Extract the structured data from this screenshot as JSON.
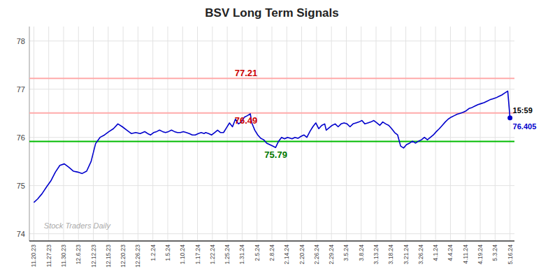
{
  "chart_data": {
    "type": "line",
    "title": "BSV Long Term Signals",
    "color": "#0000cc",
    "grid": true,
    "xlim": [
      -0.3,
      32.3
    ],
    "xticks": [
      {
        "value": 0,
        "label": "11.20.23"
      },
      {
        "value": 1,
        "label": "11.27.23"
      },
      {
        "value": 2,
        "label": "11.30.23"
      },
      {
        "value": 3,
        "label": "12.6.23"
      },
      {
        "value": 4,
        "label": "12.12.23"
      },
      {
        "value": 5,
        "label": "12.15.23"
      },
      {
        "value": 6,
        "label": "12.20.23"
      },
      {
        "value": 7,
        "label": "12.26.23"
      },
      {
        "value": 8,
        "label": "1.2.24"
      },
      {
        "value": 9,
        "label": "1.5.24"
      },
      {
        "value": 10,
        "label": "1.10.24"
      },
      {
        "value": 11,
        "label": "1.17.24"
      },
      {
        "value": 12,
        "label": "1.22.24"
      },
      {
        "value": 13,
        "label": "1.25.24"
      },
      {
        "value": 14,
        "label": "1.31.24"
      },
      {
        "value": 15,
        "label": "2.5.24"
      },
      {
        "value": 16,
        "label": "2.8.24"
      },
      {
        "value": 17,
        "label": "2.14.24"
      },
      {
        "value": 18,
        "label": "2.20.24"
      },
      {
        "value": 19,
        "label": "2.26.24"
      },
      {
        "value": 20,
        "label": "2.29.24"
      },
      {
        "value": 21,
        "label": "3.5.24"
      },
      {
        "value": 22,
        "label": "3.8.24"
      },
      {
        "value": 23,
        "label": "3.13.24"
      },
      {
        "value": 24,
        "label": "3.18.24"
      },
      {
        "value": 25,
        "label": "3.21.24"
      },
      {
        "value": 26,
        "label": "3.26.24"
      },
      {
        "value": 27,
        "label": "4.1.24"
      },
      {
        "value": 28,
        "label": "4.4.24"
      },
      {
        "value": 29,
        "label": "4.11.24"
      },
      {
        "value": 30,
        "label": "4.19.24"
      },
      {
        "value": 31,
        "label": "5.3.24"
      },
      {
        "value": 32,
        "label": "5.16.24"
      }
    ],
    "ylim": [
      73.85,
      78.3
    ],
    "yticks": [
      74,
      75,
      76,
      77,
      78
    ],
    "x": [
      0,
      0.25,
      0.55,
      0.85,
      1.15,
      1.45,
      1.75,
      2.05,
      2.35,
      2.65,
      2.95,
      3.25,
      3.55,
      3.85,
      4.15,
      4.45,
      4.75,
      5.05,
      5.35,
      5.65,
      5.95,
      6.25,
      6.55,
      6.85,
      7.15,
      7.45,
      7.55,
      7.65,
      7.85,
      8.05,
      8.25,
      8.45,
      8.65,
      8.85,
      9.05,
      9.25,
      9.45,
      9.65,
      9.85,
      10.05,
      10.25,
      10.45,
      10.65,
      10.85,
      11.05,
      11.25,
      11.45,
      11.55,
      11.75,
      11.95,
      12.15,
      12.35,
      12.55,
      12.75,
      12.95,
      13.15,
      13.35,
      13.55,
      13.75,
      13.95,
      14.15,
      14.35,
      14.55,
      14.65,
      14.85,
      15.05,
      15.25,
      15.45,
      15.65,
      15.85,
      16.05,
      16.25,
      16.45,
      16.65,
      16.85,
      17.05,
      17.25,
      17.35,
      17.55,
      17.75,
      17.95,
      18.15,
      18.35,
      18.55,
      18.75,
      18.95,
      19.15,
      19.35,
      19.55,
      19.65,
      19.85,
      20.05,
      20.25,
      20.45,
      20.65,
      20.85,
      21.05,
      21.25,
      21.45,
      21.65,
      21.85,
      22.05,
      22.25,
      22.45,
      22.65,
      22.85,
      23.05,
      23.25,
      23.45,
      23.65,
      23.85,
      24.05,
      24.25,
      24.45,
      24.65,
      24.85,
      25.05,
      25.25,
      25.45,
      25.65,
      25.85,
      26.05,
      26.25,
      26.45,
      26.65,
      26.85,
      27.05,
      27.25,
      27.45,
      27.65,
      27.85,
      28.05,
      28.25,
      28.45,
      28.65,
      28.85,
      29.05,
      29.25,
      29.45,
      29.65,
      29.85,
      30.05,
      30.25,
      30.45,
      30.65,
      30.85,
      31.05,
      31.25,
      31.45,
      31.65,
      31.85,
      32.0
    ],
    "values": [
      74.65,
      74.72,
      74.83,
      74.97,
      75.1,
      75.28,
      75.42,
      75.45,
      75.38,
      75.3,
      75.28,
      75.25,
      75.3,
      75.5,
      75.87,
      76.0,
      76.05,
      76.12,
      76.18,
      76.28,
      76.22,
      76.15,
      76.08,
      76.1,
      76.08,
      76.12,
      76.1,
      76.08,
      76.05,
      76.1,
      76.12,
      76.15,
      76.12,
      76.1,
      76.12,
      76.15,
      76.12,
      76.1,
      76.1,
      76.12,
      76.1,
      76.08,
      76.05,
      76.05,
      76.08,
      76.1,
      76.08,
      76.1,
      76.08,
      76.05,
      76.1,
      76.15,
      76.1,
      76.1,
      76.2,
      76.3,
      76.22,
      76.38,
      76.28,
      76.32,
      76.42,
      76.45,
      76.49,
      76.3,
      76.15,
      76.05,
      75.98,
      75.95,
      75.88,
      75.85,
      75.82,
      75.79,
      75.92,
      76.0,
      75.97,
      76.0,
      75.98,
      75.97,
      76.0,
      75.98,
      76.02,
      76.05,
      76.0,
      76.12,
      76.22,
      76.3,
      76.18,
      76.25,
      76.28,
      76.15,
      76.2,
      76.25,
      76.28,
      76.22,
      76.28,
      76.3,
      76.28,
      76.22,
      76.28,
      76.3,
      76.32,
      76.35,
      76.28,
      76.3,
      76.32,
      76.35,
      76.3,
      76.25,
      76.32,
      76.28,
      76.25,
      76.18,
      76.1,
      76.05,
      75.82,
      75.78,
      75.85,
      75.88,
      75.92,
      75.88,
      75.92,
      75.95,
      76.0,
      75.95,
      76.0,
      76.05,
      76.12,
      76.18,
      76.25,
      76.32,
      76.38,
      76.42,
      76.45,
      76.48,
      76.5,
      76.52,
      76.55,
      76.6,
      76.62,
      76.65,
      76.68,
      76.7,
      76.72,
      76.75,
      76.78,
      76.8,
      76.82,
      76.85,
      76.88,
      76.92,
      76.96,
      76.405
    ],
    "hlines": [
      {
        "value": 77.225,
        "color": "#ffaaaa"
      },
      {
        "value": 76.505,
        "color": "#ffaaaa"
      },
      {
        "value": 75.915,
        "color": "#00bb00"
      }
    ],
    "annotations": [
      {
        "text": "77.21",
        "x": 13.5,
        "y": 77.21,
        "color": "#cc0000"
      },
      {
        "text": "76.49",
        "x": 13.5,
        "y": 76.49,
        "color": "#cc0000"
      },
      {
        "text": "75.79",
        "x": 15.5,
        "y": 75.79,
        "color": "#007700"
      },
      {
        "text": "15:59",
        "x": 32.0,
        "y": 76.405,
        "color": "#000000"
      },
      {
        "text": "76.405",
        "x": 32.0,
        "y": 76.405,
        "color": "#0000cc"
      }
    ],
    "watermark": "Stock Traders Daily"
  }
}
